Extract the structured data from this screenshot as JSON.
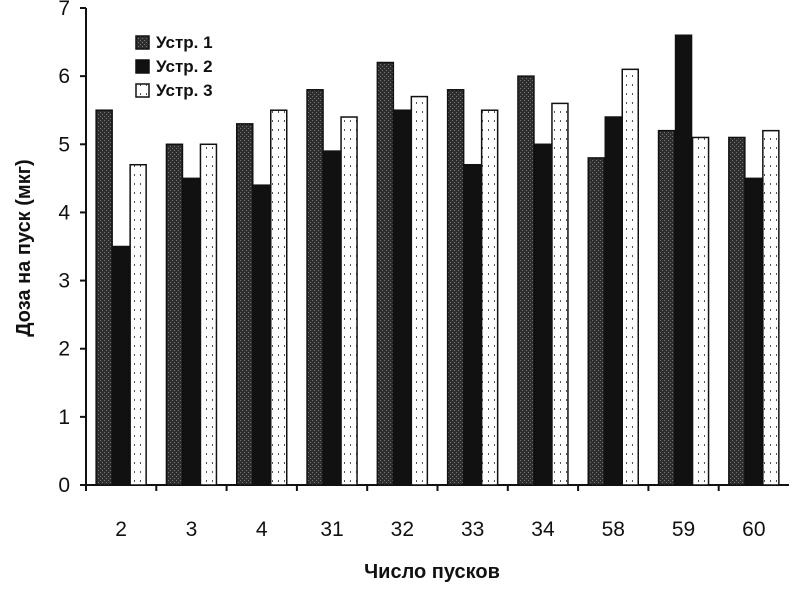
{
  "chart_data": {
    "type": "bar",
    "title": "",
    "xlabel": "Число пусков",
    "ylabel": "Доза на пуск (мкг)",
    "ylim": [
      0,
      7
    ],
    "yticks": [
      0,
      1,
      2,
      3,
      4,
      5,
      6,
      7
    ],
    "categories": [
      "2",
      "3",
      "4",
      "31",
      "32",
      "33",
      "34",
      "58",
      "59",
      "60"
    ],
    "series": [
      {
        "name": "Устр. 1",
        "color": "#3a3a3a",
        "values": [
          5.5,
          5.0,
          5.3,
          5.8,
          6.2,
          5.8,
          6.0,
          4.8,
          5.2,
          5.1
        ]
      },
      {
        "name": "Устр. 2",
        "color": "#111111",
        "values": [
          3.5,
          4.5,
          4.4,
          4.9,
          5.5,
          4.7,
          5.0,
          5.4,
          6.6,
          4.5
        ]
      },
      {
        "name": "Устр. 3",
        "color": "#ffffff",
        "values": [
          4.7,
          5.0,
          5.5,
          5.4,
          5.7,
          5.5,
          5.6,
          6.1,
          5.1,
          5.2
        ]
      }
    ],
    "legend_position": "top-left",
    "grid": false
  }
}
